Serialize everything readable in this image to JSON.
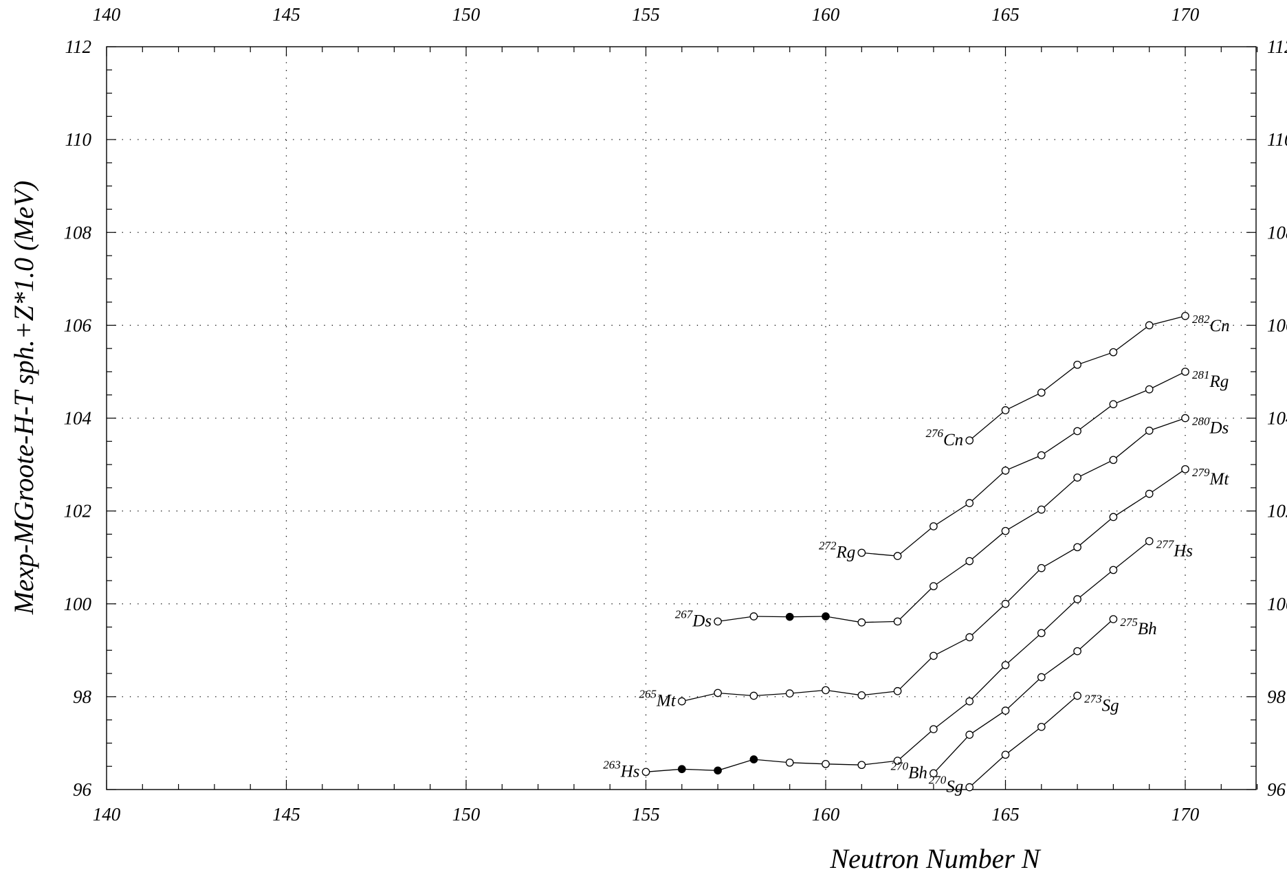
{
  "chart_data": {
    "type": "line",
    "xlabel": "Neutron Number  N",
    "ylabel": "Mexp-MGroote-H-T sph.+Z*1.0 (MeV)",
    "xlim": [
      140,
      172
    ],
    "ylim": [
      96,
      112
    ],
    "x_ticks": [
      140,
      145,
      150,
      155,
      160,
      165,
      170
    ],
    "y_ticks": [
      96,
      98,
      100,
      102,
      104,
      106,
      108,
      110,
      112
    ],
    "grid": true,
    "marker_legend": {
      "open_circle": "open",
      "filled_circle": "filled"
    },
    "series": [
      {
        "element": "Sg",
        "start_label": {
          "mass": "270",
          "symbol": "Sg"
        },
        "end_label": {
          "mass": "273",
          "symbol": "Sg"
        },
        "points": [
          {
            "x": 164,
            "y": 96.05,
            "marker": "open"
          },
          {
            "x": 165,
            "y": 96.75,
            "marker": "open"
          },
          {
            "x": 166,
            "y": 97.35,
            "marker": "open"
          },
          {
            "x": 167,
            "y": 98.02,
            "marker": "open"
          }
        ]
      },
      {
        "element": "Bh",
        "start_label": {
          "mass": "270",
          "symbol": "Bh"
        },
        "end_label": {
          "mass": "275",
          "symbol": "Bh"
        },
        "points": [
          {
            "x": 163,
            "y": 96.35,
            "marker": "open"
          },
          {
            "x": 164,
            "y": 97.18,
            "marker": "open"
          },
          {
            "x": 165,
            "y": 97.7,
            "marker": "open"
          },
          {
            "x": 166,
            "y": 98.42,
            "marker": "open"
          },
          {
            "x": 167,
            "y": 98.98,
            "marker": "open"
          },
          {
            "x": 168,
            "y": 99.67,
            "marker": "open"
          }
        ]
      },
      {
        "element": "Hs",
        "start_label": {
          "mass": "263",
          "symbol": "Hs"
        },
        "end_label": {
          "mass": "277",
          "symbol": "Hs"
        },
        "points": [
          {
            "x": 155,
            "y": 96.38,
            "marker": "open"
          },
          {
            "x": 156,
            "y": 96.44,
            "marker": "filled"
          },
          {
            "x": 157,
            "y": 96.41,
            "marker": "filled"
          },
          {
            "x": 158,
            "y": 96.65,
            "marker": "filled"
          },
          {
            "x": 159,
            "y": 96.58,
            "marker": "open"
          },
          {
            "x": 160,
            "y": 96.55,
            "marker": "open"
          },
          {
            "x": 161,
            "y": 96.53,
            "marker": "open"
          },
          {
            "x": 162,
            "y": 96.62,
            "marker": "open"
          },
          {
            "x": 163,
            "y": 97.3,
            "marker": "open"
          },
          {
            "x": 164,
            "y": 97.9,
            "marker": "open"
          },
          {
            "x": 165,
            "y": 98.68,
            "marker": "open"
          },
          {
            "x": 166,
            "y": 99.37,
            "marker": "open"
          },
          {
            "x": 167,
            "y": 100.1,
            "marker": "open"
          },
          {
            "x": 168,
            "y": 100.73,
            "marker": "open"
          },
          {
            "x": 169,
            "y": 101.35,
            "marker": "open"
          }
        ]
      },
      {
        "element": "Mt",
        "start_label": {
          "mass": "265",
          "symbol": "Mt"
        },
        "end_label": {
          "mass": "279",
          "symbol": "Mt"
        },
        "points": [
          {
            "x": 156,
            "y": 97.9,
            "marker": "open"
          },
          {
            "x": 157,
            "y": 98.08,
            "marker": "open"
          },
          {
            "x": 158,
            "y": 98.02,
            "marker": "open"
          },
          {
            "x": 159,
            "y": 98.07,
            "marker": "open"
          },
          {
            "x": 160,
            "y": 98.14,
            "marker": "open"
          },
          {
            "x": 161,
            "y": 98.03,
            "marker": "open"
          },
          {
            "x": 162,
            "y": 98.12,
            "marker": "open"
          },
          {
            "x": 163,
            "y": 98.88,
            "marker": "open"
          },
          {
            "x": 164,
            "y": 99.28,
            "marker": "open"
          },
          {
            "x": 165,
            "y": 100.0,
            "marker": "open"
          },
          {
            "x": 166,
            "y": 100.77,
            "marker": "open"
          },
          {
            "x": 167,
            "y": 101.22,
            "marker": "open"
          },
          {
            "x": 168,
            "y": 101.87,
            "marker": "open"
          },
          {
            "x": 169,
            "y": 102.37,
            "marker": "open"
          },
          {
            "x": 170,
            "y": 102.9,
            "marker": "open"
          }
        ]
      },
      {
        "element": "Ds",
        "start_label": {
          "mass": "267",
          "symbol": "Ds"
        },
        "end_label": {
          "mass": "280",
          "symbol": "Ds"
        },
        "points": [
          {
            "x": 157,
            "y": 99.62,
            "marker": "open"
          },
          {
            "x": 158,
            "y": 99.73,
            "marker": "open"
          },
          {
            "x": 159,
            "y": 99.72,
            "marker": "filled"
          },
          {
            "x": 160,
            "y": 99.73,
            "marker": "filled"
          },
          {
            "x": 161,
            "y": 99.6,
            "marker": "open"
          },
          {
            "x": 162,
            "y": 99.62,
            "marker": "open"
          },
          {
            "x": 163,
            "y": 100.38,
            "marker": "open"
          },
          {
            "x": 164,
            "y": 100.92,
            "marker": "open"
          },
          {
            "x": 165,
            "y": 101.57,
            "marker": "open"
          },
          {
            "x": 166,
            "y": 102.03,
            "marker": "open"
          },
          {
            "x": 167,
            "y": 102.72,
            "marker": "open"
          },
          {
            "x": 168,
            "y": 103.1,
            "marker": "open"
          },
          {
            "x": 169,
            "y": 103.73,
            "marker": "open"
          },
          {
            "x": 170,
            "y": 104.0,
            "marker": "open"
          }
        ]
      },
      {
        "element": "Rg",
        "start_label": {
          "mass": "272",
          "symbol": "Rg"
        },
        "end_label": {
          "mass": "281",
          "symbol": "Rg"
        },
        "points": [
          {
            "x": 161,
            "y": 101.1,
            "marker": "open"
          },
          {
            "x": 162,
            "y": 101.03,
            "marker": "open"
          },
          {
            "x": 163,
            "y": 101.67,
            "marker": "open"
          },
          {
            "x": 164,
            "y": 102.17,
            "marker": "open"
          },
          {
            "x": 165,
            "y": 102.87,
            "marker": "open"
          },
          {
            "x": 166,
            "y": 103.2,
            "marker": "open"
          },
          {
            "x": 167,
            "y": 103.72,
            "marker": "open"
          },
          {
            "x": 168,
            "y": 104.3,
            "marker": "open"
          },
          {
            "x": 169,
            "y": 104.62,
            "marker": "open"
          },
          {
            "x": 170,
            "y": 105.0,
            "marker": "open"
          }
        ]
      },
      {
        "element": "Cn",
        "start_label": {
          "mass": "276",
          "symbol": "Cn"
        },
        "end_label": {
          "mass": "282",
          "symbol": "Cn"
        },
        "points": [
          {
            "x": 164,
            "y": 103.52,
            "marker": "open"
          },
          {
            "x": 165,
            "y": 104.17,
            "marker": "open"
          },
          {
            "x": 166,
            "y": 104.55,
            "marker": "open"
          },
          {
            "x": 167,
            "y": 105.15,
            "marker": "open"
          },
          {
            "x": 168,
            "y": 105.42,
            "marker": "open"
          },
          {
            "x": 169,
            "y": 106.0,
            "marker": "open"
          },
          {
            "x": 170,
            "y": 106.2,
            "marker": "open"
          }
        ]
      }
    ]
  }
}
